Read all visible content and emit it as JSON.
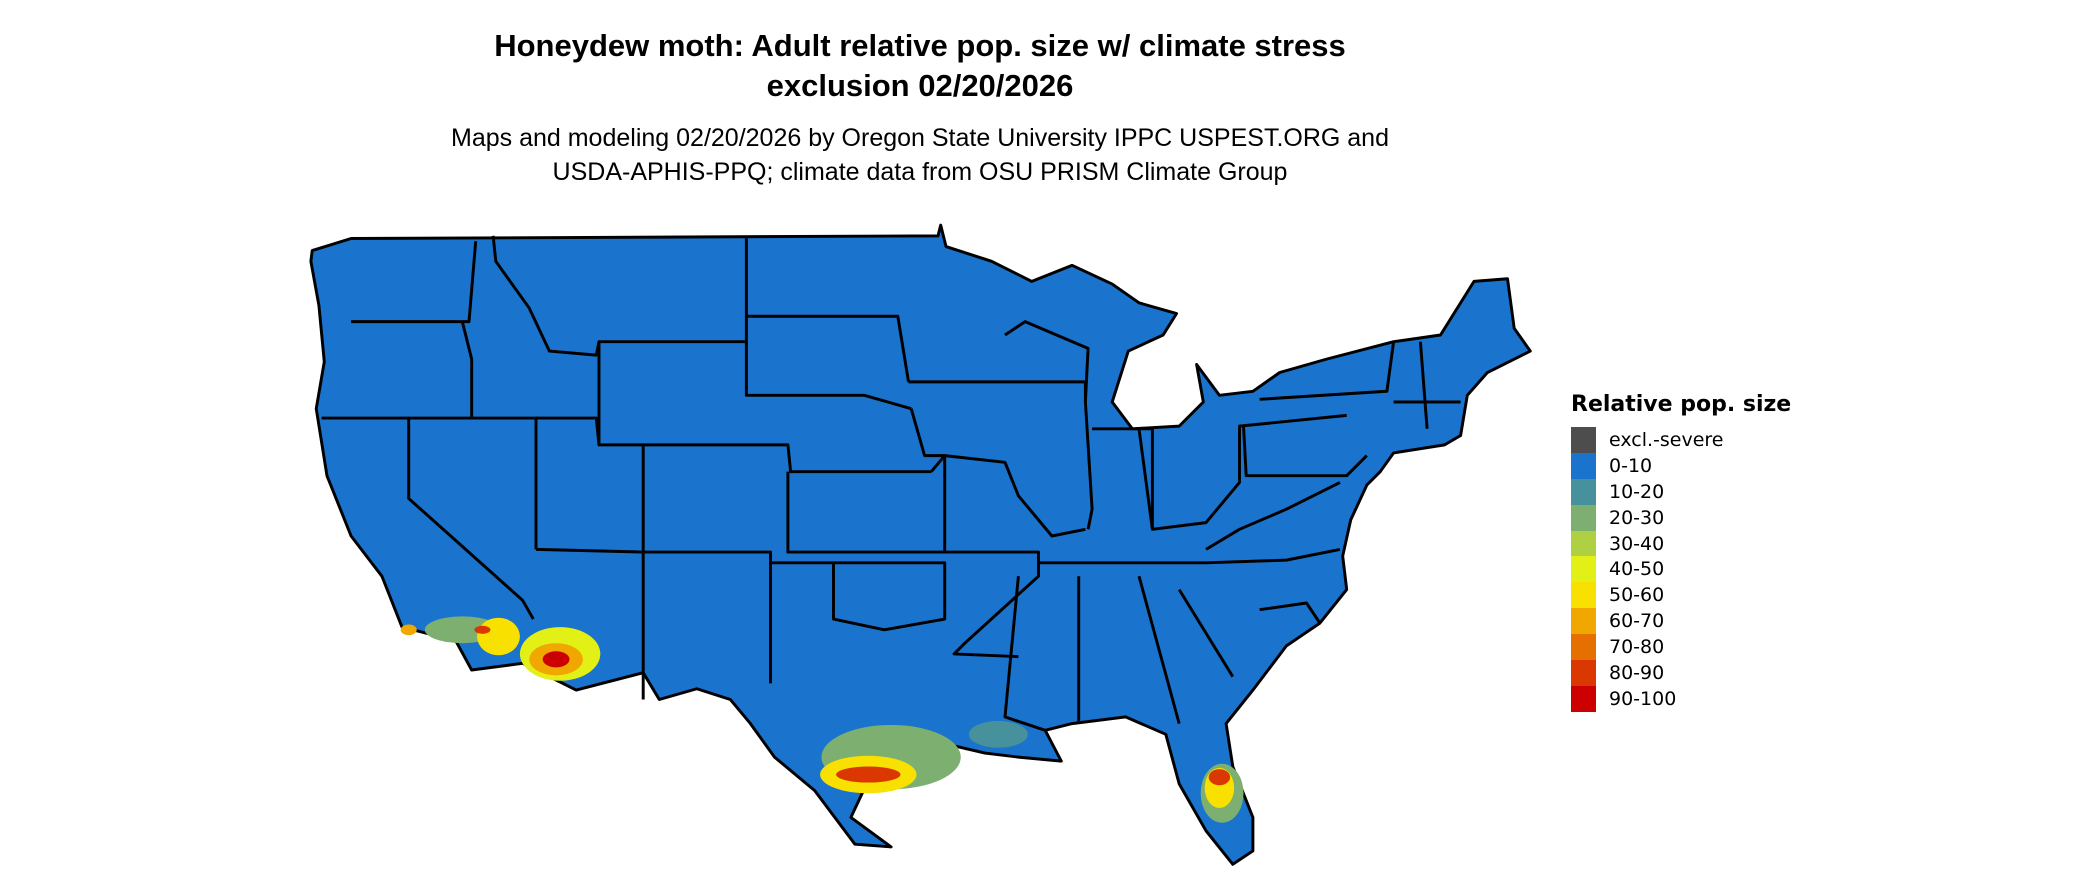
{
  "title_line1": "Honeydew moth: Adult relative pop. size w/ climate stress",
  "title_line2": "exclusion 02/20/2026",
  "subtitle_line1": "Maps and modeling 02/20/2026 by Oregon State University IPPC USPEST.ORG and",
  "subtitle_line2": "USDA-APHIS-PPQ; climate data from OSU PRISM Climate Group",
  "map": {
    "region": "Contiguous United States",
    "base_color": "#1a73cc",
    "border_color": "#000000"
  },
  "legend": {
    "title": "Relative pop. size",
    "items": [
      {
        "label": "excl.-severe",
        "color": "#4d4d4d"
      },
      {
        "label": "0-10",
        "color": "#1a73cc"
      },
      {
        "label": "10-20",
        "color": "#46919c"
      },
      {
        "label": "20-30",
        "color": "#7daf70"
      },
      {
        "label": "30-40",
        "color": "#b0d043"
      },
      {
        "label": "40-50",
        "color": "#e3f015"
      },
      {
        "label": "50-60",
        "color": "#f8e000"
      },
      {
        "label": "60-70",
        "color": "#f0a800"
      },
      {
        "label": "70-80",
        "color": "#e57000"
      },
      {
        "label": "80-90",
        "color": "#da3800"
      },
      {
        "label": "90-100",
        "color": "#cc0000"
      }
    ]
  }
}
